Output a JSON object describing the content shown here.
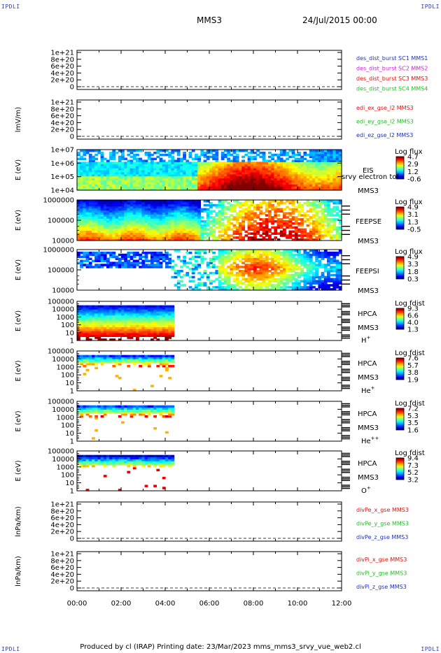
{
  "header": {
    "corner_label": "IPDLI",
    "mission": "MMS3",
    "datetime": "24/Jul/2015 00:00"
  },
  "footer": {
    "text": "Produced by cl (IRAP)   Printing date: 23/Mar/2023   mms_mms3_srvy_vue_web2.cl"
  },
  "colors": {
    "blue": "#2030c0",
    "magenta": "#d020d0",
    "red": "#e01010",
    "green": "#20c020"
  },
  "chart_data": {
    "type": "heatmap",
    "x_ticks": [
      "00:00",
      "02:00",
      "04:00",
      "06:00",
      "08:00",
      "10:00",
      "12:00"
    ],
    "xlim": [
      "00:00",
      "12:00"
    ],
    "panels": [
      {
        "kind": "line",
        "ylabel": "",
        "yticks": [
          "1e+21",
          "8e+20",
          "6e+20",
          "4e+20",
          "2e+20",
          "0"
        ],
        "legend": [
          {
            "name": "des_dist_burst SC1 MMS1",
            "color": "#2030c0"
          },
          {
            "name": "des_dist_burst SC2 MMS2",
            "color": "#d020d0"
          },
          {
            "name": "des_dist_burst SC3 MMS3",
            "color": "#e01010"
          },
          {
            "name": "des_dist_burst SC4 MMS4",
            "color": "#20c020"
          }
        ]
      },
      {
        "kind": "line",
        "ylabel": "lmV/m)",
        "yticks": [
          "1e+21",
          "8e+20",
          "6e+20",
          "4e+20",
          "2e+20",
          "0"
        ],
        "legend": [
          {
            "name": "edi_ex_gse_l2 MMS3",
            "color": "#e01010"
          },
          {
            "name": "edi_ey_gse_l2 MMS3",
            "color": "#20c020"
          },
          {
            "name": "edi_ez_gse_l2 MMS3",
            "color": "#2030c0"
          }
        ]
      },
      {
        "kind": "spec",
        "ylabel": "E (eV)",
        "yticks": [
          "1e+07",
          "1e+06",
          "1e+05",
          "1e+04"
        ],
        "labels": [
          "EIS",
          "srvy electron tof",
          "MMS3"
        ],
        "cbar_title": "Log flux",
        "cbar_ticks": [
          "4.7",
          "2.9",
          "1.2",
          "-0.6"
        ],
        "data_end": 12.0,
        "style": "eis"
      },
      {
        "kind": "spec",
        "ylabel": "E (eV)",
        "yticks": [
          "1000000",
          "100000",
          "10000"
        ],
        "labels": [
          "FEEPSE",
          "MMS3"
        ],
        "cbar_title": "Log flux",
        "cbar_ticks": [
          "4.9",
          "3.1",
          "1.3",
          "-0.5"
        ],
        "data_end": 12.0,
        "style": "feepse"
      },
      {
        "kind": "spec",
        "ylabel": "E (eV)",
        "yticks": [
          "1000000",
          "100000",
          "10000"
        ],
        "labels": [
          "FEEPSI",
          "MMS3"
        ],
        "cbar_title": "Log flux",
        "cbar_ticks": [
          "4.9",
          "3.3",
          "1.8",
          "0.3"
        ],
        "data_end": 12.0,
        "style": "feepsi"
      },
      {
        "kind": "spec",
        "ylabel": "E (eV)",
        "yticks": [
          "100000",
          "10000",
          "1000",
          "100",
          "10",
          "1"
        ],
        "labels": [
          "HPCA",
          "MMS3"
        ],
        "species": "H",
        "species_sup": "+",
        "cbar_title": "Log fdist",
        "cbar_ticks": [
          "9.3",
          "6.6",
          "4.0",
          "1.3"
        ],
        "data_end": 4.35,
        "style": "hplus"
      },
      {
        "kind": "spec",
        "ylabel": "E (eV)",
        "yticks": [
          "100000",
          "10000",
          "1000",
          "100",
          "10",
          "1"
        ],
        "labels": [
          "HPCA",
          "MMS3"
        ],
        "species": "He",
        "species_sup": "+",
        "cbar_title": "Log fdist",
        "cbar_ticks": [
          "7.6",
          "5.7",
          "3.8",
          "1.9"
        ],
        "data_end": 4.35,
        "style": "heplus"
      },
      {
        "kind": "spec",
        "ylabel": "E (eV)",
        "yticks": [
          "100000",
          "10000",
          "1000",
          "100",
          "10",
          "1"
        ],
        "labels": [
          "HPCA",
          "MMS3"
        ],
        "species": "He",
        "species_sup": "++",
        "cbar_title": "Log fdist",
        "cbar_ticks": [
          "7.2",
          "5.3",
          "3.5",
          "1.6"
        ],
        "data_end": 4.35,
        "style": "hepp"
      },
      {
        "kind": "spec",
        "ylabel": "E (eV)",
        "yticks": [
          "100000",
          "10000",
          "1000",
          "100",
          "10",
          "1"
        ],
        "labels": [
          "HPCA",
          "MMS3"
        ],
        "species": "O",
        "species_sup": "+",
        "cbar_title": "Log fdist",
        "cbar_ticks": [
          "9.4",
          "7.3",
          "5.2",
          "3.2"
        ],
        "data_end": 4.35,
        "style": "oplus"
      },
      {
        "kind": "line",
        "ylabel": "lnPa/km)",
        "yticks": [
          "1e+21",
          "8e+20",
          "6e+20",
          "4e+20",
          "2e+20",
          "0"
        ],
        "legend": [
          {
            "name": "divPe_x_gse MMS3",
            "color": "#e01010"
          },
          {
            "name": "divPe_y_gse MMS3",
            "color": "#20c020"
          },
          {
            "name": "divPe_z_gse MMS3",
            "color": "#2030c0"
          }
        ]
      },
      {
        "kind": "line",
        "ylabel": "lnPa/km)",
        "yticks": [
          "1e+21",
          "8e+20",
          "6e+20",
          "4e+20",
          "2e+20",
          "0"
        ],
        "legend": [
          {
            "name": "divPi_x_gse MMS3",
            "color": "#e01010"
          },
          {
            "name": "divPi_y_gse MMS3",
            "color": "#20c020"
          },
          {
            "name": "divPi_z_gse MMS3",
            "color": "#2030c0"
          }
        ]
      }
    ]
  }
}
